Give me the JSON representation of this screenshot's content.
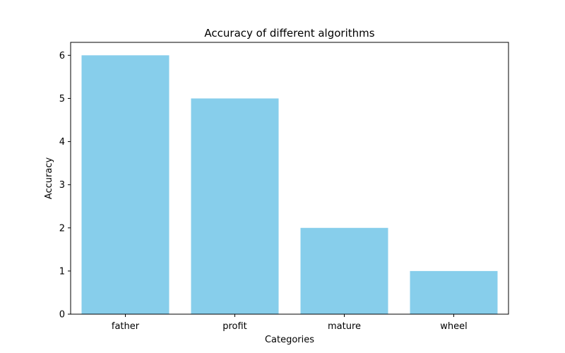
{
  "chart_data": {
    "type": "bar",
    "title": "Accuracy of different algorithms",
    "xlabel": "Categories",
    "ylabel": "Accuracy",
    "categories": [
      "father",
      "profit",
      "mature",
      "wheel"
    ],
    "values": [
      6,
      5,
      2,
      1
    ],
    "ylim": [
      0,
      6.3
    ],
    "yticks": [
      0,
      1,
      2,
      3,
      4,
      5,
      6
    ],
    "grid": false,
    "bar_color": "#87ceeb",
    "axis_color": "#000000"
  }
}
